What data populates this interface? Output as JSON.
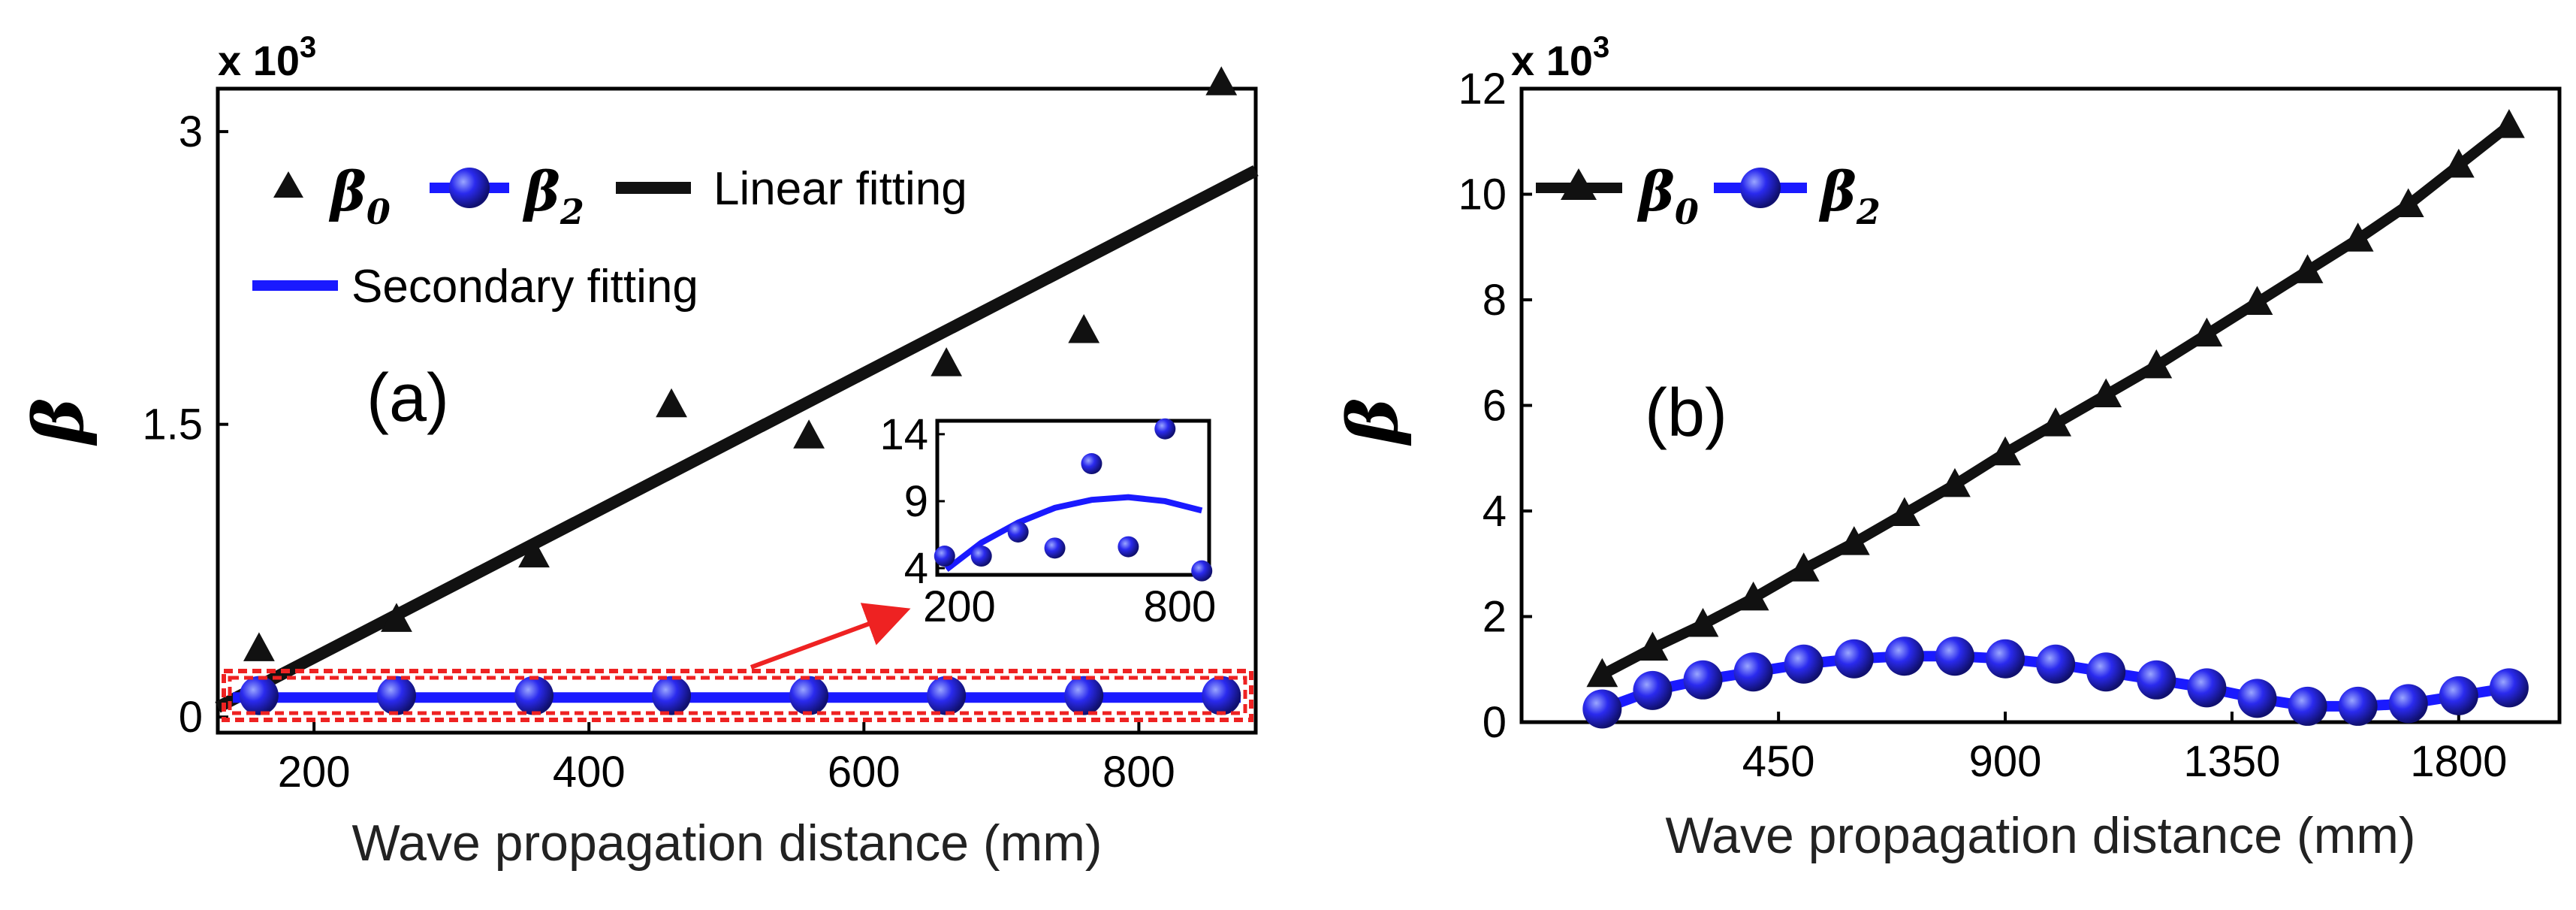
{
  "chart_data": [
    {
      "type": "scatter",
      "panel_label": "(a)",
      "xlabel": "Wave propagation distance (mm)",
      "ylabel": "β",
      "multiplier": "x 10",
      "multiplier_exp": "3",
      "xlim": [
        130,
        885
      ],
      "ylim": [
        -0.08,
        3.22
      ],
      "xticks": [
        "200",
        "400",
        "600",
        "800"
      ],
      "xtick_values": [
        200,
        400,
        600,
        800
      ],
      "yticks": [
        "0",
        "1.5",
        "3"
      ],
      "ytick_values": [
        0,
        1.5,
        3
      ],
      "legend": {
        "beta0": "β",
        "beta0_sub": "0",
        "beta2": "β",
        "beta2_sub": "2",
        "linear": "Linear fitting",
        "secondary": "Secondary fitting"
      },
      "series": [
        {
          "name": "β0",
          "x": [
            160,
            260,
            360,
            460,
            560,
            660,
            760,
            860
          ],
          "values": [
            0.35,
            0.5,
            0.83,
            1.6,
            1.44,
            1.81,
            1.98,
            3.25
          ]
        },
        {
          "name": "β2",
          "x": [
            160,
            260,
            360,
            460,
            560,
            660,
            760,
            860
          ],
          "values": [
            0.11,
            0.11,
            0.11,
            0.11,
            0.11,
            0.11,
            0.11,
            0.11
          ]
        },
        {
          "name": "Linear fitting",
          "x": [
            130,
            885
          ],
          "values": [
            0.05,
            2.8
          ]
        },
        {
          "name": "Secondary fitting",
          "x": [
            130,
            885
          ],
          "values": [
            0.1,
            0.1
          ]
        }
      ],
      "inset": {
        "xticks": [
          "200",
          "800"
        ],
        "xtick_values": [
          200,
          800
        ],
        "yticks": [
          "4",
          "9",
          "14"
        ],
        "ytick_values": [
          4,
          9,
          14
        ],
        "xlim": [
          140,
          880
        ],
        "ylim": [
          3.5,
          15
        ],
        "points_x": [
          160,
          260,
          360,
          460,
          560,
          660,
          760,
          860
        ],
        "points_y": [
          4.9,
          4.9,
          6.7,
          5.5,
          11.8,
          5.6,
          14.4,
          3.8
        ],
        "fit_x": [
          165,
          260,
          360,
          460,
          560,
          660,
          760,
          860
        ],
        "fit_y": [
          3.9,
          5.9,
          7.4,
          8.5,
          9.1,
          9.3,
          9.0,
          8.3
        ]
      }
    },
    {
      "type": "line",
      "panel_label": "(b)",
      "xlabel": "Wave propagation distance (mm)",
      "ylabel": "β",
      "multiplier": "x 10",
      "multiplier_exp": "3",
      "xlim": [
        -60,
        2000
      ],
      "ylim": [
        0,
        12
      ],
      "xticks": [
        "450",
        "900",
        "1350",
        "1800"
      ],
      "xtick_values": [
        450,
        900,
        1350,
        1800
      ],
      "yticks": [
        "0",
        "2",
        "4",
        "6",
        "8",
        "10",
        "12"
      ],
      "ytick_values": [
        0,
        2,
        4,
        6,
        8,
        10,
        12
      ],
      "legend": {
        "beta0": "β",
        "beta0_sub": "0",
        "beta2": "β",
        "beta2_sub": "2"
      },
      "x": [
        100,
        200,
        300,
        400,
        500,
        600,
        700,
        800,
        900,
        1000,
        1100,
        1200,
        1300,
        1400,
        1500,
        1600,
        1700,
        1800,
        1900
      ],
      "series": [
        {
          "name": "β0",
          "values": [
            0.9,
            1.4,
            1.85,
            2.35,
            2.9,
            3.4,
            3.95,
            4.5,
            5.1,
            5.65,
            6.2,
            6.75,
            7.35,
            7.95,
            8.55,
            9.15,
            9.8,
            10.55,
            11.3
          ]
        },
        {
          "name": "β2",
          "values": [
            0.25,
            0.6,
            0.8,
            0.95,
            1.1,
            1.2,
            1.25,
            1.25,
            1.2,
            1.1,
            0.95,
            0.8,
            0.65,
            0.45,
            0.3,
            0.3,
            0.35,
            0.5,
            0.65
          ]
        }
      ]
    }
  ],
  "colors": {
    "beta0": "#111111",
    "beta2_fill": "#2222dd",
    "beta2_line": "#1a1aff",
    "arrow": "#ee2222",
    "box": "#ee2222"
  }
}
